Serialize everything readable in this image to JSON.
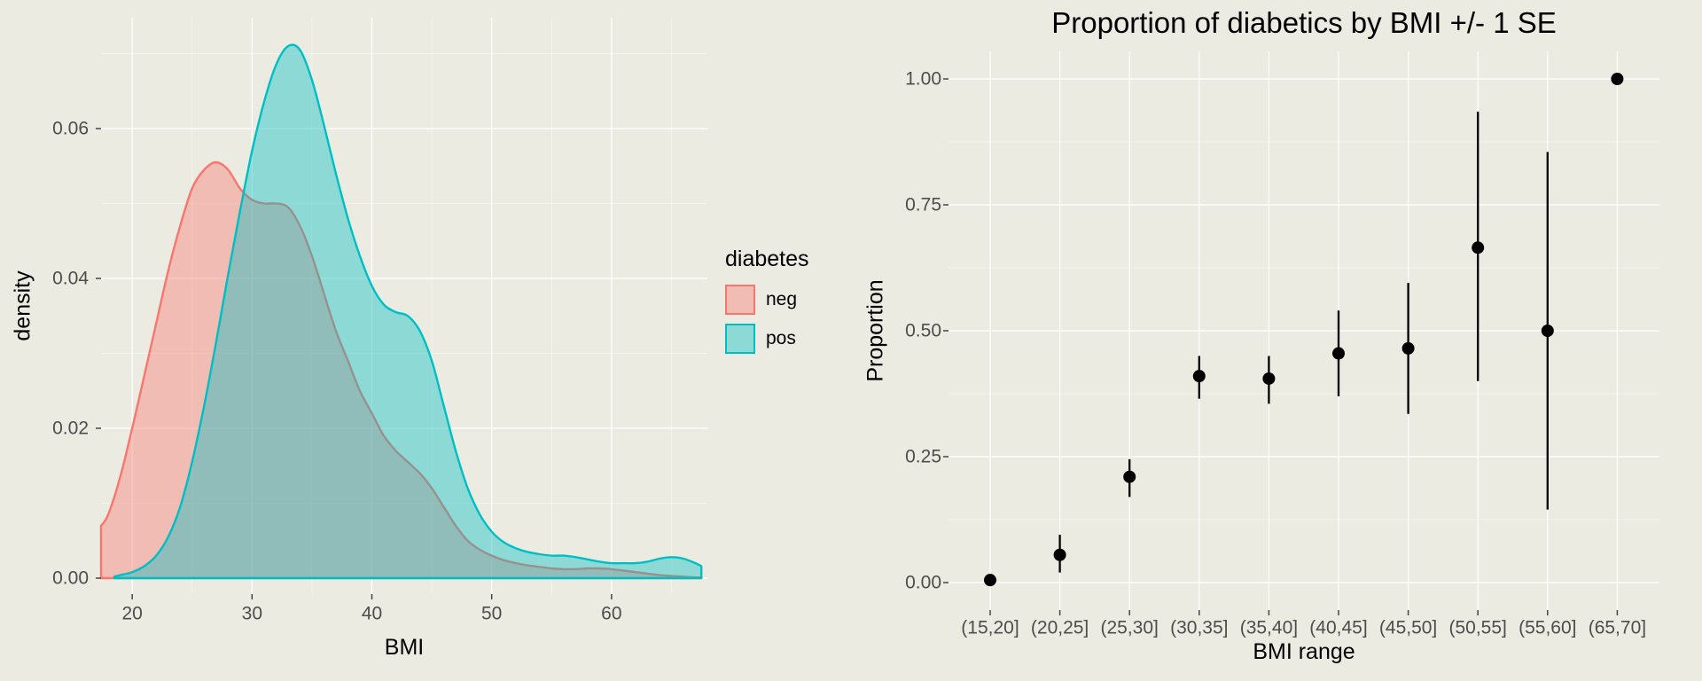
{
  "page": {
    "background": "#EBEBE2",
    "grid_color": "#FFFFFF",
    "tick_label_color": "#4D4D4D",
    "tick_mark_color": "#333333",
    "text_color": "#000000"
  },
  "chart_data": [
    {
      "type": "area",
      "name": "BMI density by diabetes status",
      "title": "",
      "xlabel": "BMI",
      "ylabel": "density",
      "xlim": [
        17.4,
        68
      ],
      "ylim": [
        0,
        0.0748
      ],
      "xticks": [
        20,
        30,
        40,
        50,
        60
      ],
      "xtick_labels": [
        "20",
        "30",
        "40",
        "50",
        "60"
      ],
      "xticks_minor": [
        25,
        35,
        45,
        55,
        65
      ],
      "yticks": [
        0,
        0.02,
        0.04,
        0.06
      ],
      "ytick_labels": [
        "0.00",
        "0.02",
        "0.04",
        "0.06"
      ],
      "yticks_minor": [
        0.01,
        0.03,
        0.05,
        0.07
      ],
      "fill_opacity": 0.4,
      "legend": {
        "title": "diabetes",
        "entries": [
          {
            "label": "neg",
            "color": "#F8766D"
          },
          {
            "label": "pos",
            "color": "#00BFC4"
          }
        ]
      },
      "series": [
        {
          "name": "neg",
          "color": "#F8766D",
          "points": [
            [
              17.4,
              0.007
            ],
            [
              18,
              0.0085
            ],
            [
              19,
              0.0135
            ],
            [
              20,
              0.02
            ],
            [
              21,
              0.027
            ],
            [
              22,
              0.034
            ],
            [
              23,
              0.041
            ],
            [
              24,
              0.047
            ],
            [
              25,
              0.052
            ],
            [
              26,
              0.0545
            ],
            [
              27,
              0.0555
            ],
            [
              28,
              0.0545
            ],
            [
              29,
              0.052
            ],
            [
              30,
              0.0505
            ],
            [
              31,
              0.05
            ],
            [
              32,
              0.05
            ],
            [
              33,
              0.0495
            ],
            [
              34,
              0.047
            ],
            [
              35,
              0.043
            ],
            [
              36,
              0.038
            ],
            [
              37,
              0.033
            ],
            [
              38,
              0.029
            ],
            [
              39,
              0.025
            ],
            [
              40,
              0.022
            ],
            [
              41,
              0.019
            ],
            [
              42,
              0.017
            ],
            [
              43,
              0.0155
            ],
            [
              44,
              0.014
            ],
            [
              45,
              0.012
            ],
            [
              46,
              0.0095
            ],
            [
              47,
              0.007
            ],
            [
              48,
              0.005
            ],
            [
              49,
              0.0038
            ],
            [
              50,
              0.003
            ],
            [
              51,
              0.0024
            ],
            [
              52,
              0.002
            ],
            [
              53,
              0.0017
            ],
            [
              54,
              0.0015
            ],
            [
              55,
              0.0013
            ],
            [
              56,
              0.0012
            ],
            [
              57,
              0.0012
            ],
            [
              58,
              0.0013
            ],
            [
              59,
              0.0013
            ],
            [
              60,
              0.0012
            ],
            [
              61,
              0.001
            ],
            [
              62,
              0.0008
            ],
            [
              63,
              0.0006
            ],
            [
              64,
              0.0004
            ],
            [
              65,
              0.0003
            ],
            [
              66,
              0.0002
            ],
            [
              67,
              0.0001
            ],
            [
              67.5,
              0.0001
            ]
          ]
        },
        {
          "name": "pos",
          "color": "#00BFC4",
          "points": [
            [
              18.5,
              0.0002
            ],
            [
              19,
              0.0004
            ],
            [
              20,
              0.0008
            ],
            [
              21,
              0.0016
            ],
            [
              22,
              0.003
            ],
            [
              23,
              0.0055
            ],
            [
              24,
              0.0095
            ],
            [
              25,
              0.0155
            ],
            [
              26,
              0.023
            ],
            [
              27,
              0.0315
            ],
            [
              28,
              0.0405
            ],
            [
              29,
              0.049
            ],
            [
              30,
              0.057
            ],
            [
              31,
              0.0635
            ],
            [
              32,
              0.0685
            ],
            [
              33,
              0.071
            ],
            [
              34,
              0.0705
            ],
            [
              35,
              0.0665
            ],
            [
              36,
              0.0605
            ],
            [
              37,
              0.054
            ],
            [
              38,
              0.048
            ],
            [
              39,
              0.043
            ],
            [
              40,
              0.039
            ],
            [
              41,
              0.0365
            ],
            [
              42,
              0.0355
            ],
            [
              43,
              0.035
            ],
            [
              44,
              0.033
            ],
            [
              45,
              0.029
            ],
            [
              46,
              0.023
            ],
            [
              47,
              0.017
            ],
            [
              48,
              0.012
            ],
            [
              49,
              0.0085
            ],
            [
              50,
              0.0062
            ],
            [
              51,
              0.0048
            ],
            [
              52,
              0.004
            ],
            [
              53,
              0.0035
            ],
            [
              54,
              0.0032
            ],
            [
              55,
              0.003
            ],
            [
              56,
              0.003
            ],
            [
              57,
              0.0028
            ],
            [
              58,
              0.0025
            ],
            [
              59,
              0.0022
            ],
            [
              60,
              0.002
            ],
            [
              61,
              0.002
            ],
            [
              62,
              0.002
            ],
            [
              63,
              0.0022
            ],
            [
              64,
              0.0026
            ],
            [
              65,
              0.0028
            ],
            [
              66,
              0.0026
            ],
            [
              67,
              0.002
            ],
            [
              67.5,
              0.0016
            ]
          ]
        }
      ]
    },
    {
      "type": "scatter",
      "name": "Proportion of diabetics by BMI range with standard error bars",
      "title": "Proportion of diabetics by BMI +/- 1 SE",
      "xlabel": "BMI range",
      "ylabel": "Proportion",
      "categories": [
        "(15,20]",
        "(20,25]",
        "(25,30]",
        "(30,35]",
        "(35,40]",
        "(40,45]",
        "(45,50]",
        "(50,55]",
        "(55,60]",
        "(65,70]"
      ],
      "values": [
        0.005,
        0.055,
        0.21,
        0.41,
        0.405,
        0.455,
        0.465,
        0.665,
        0.5,
        1.0
      ],
      "err_low": [
        0.0,
        0.02,
        0.17,
        0.365,
        0.355,
        0.37,
        0.335,
        0.4,
        0.145,
        1.0
      ],
      "err_high": [
        0.011,
        0.095,
        0.245,
        0.45,
        0.45,
        0.54,
        0.595,
        0.935,
        0.855,
        1.0
      ],
      "ylim": [
        0,
        1
      ],
      "yticks": [
        0,
        0.25,
        0.5,
        0.75,
        1
      ],
      "ytick_labels": [
        "0.00",
        "0.25",
        "0.50",
        "0.75",
        "1.00"
      ],
      "yticks_minor": [
        0.125,
        0.375,
        0.625,
        0.875
      ],
      "point_color": "#000000"
    }
  ]
}
